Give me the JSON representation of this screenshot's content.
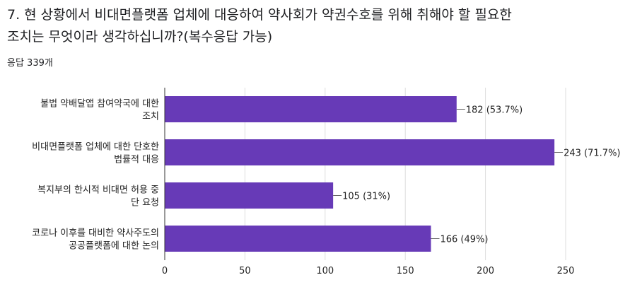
{
  "question": {
    "title_lines": [
      "7. 현 상황에서 비대면플랫폼 업체에 대응하여 약사회가 약권수호를 위해 취해야 할 필요한",
      "조치는 무엇이라 생각하십니까?(복수응답 가능)"
    ],
    "response_count": "응답 339개"
  },
  "colors": {
    "bar": "#673ab7",
    "axis": "#333333",
    "grid": "#dddddd",
    "text": "#222222"
  },
  "chart_data": {
    "type": "bar",
    "orientation": "horizontal",
    "categories": [
      [
        "불법 약배달앱 참여약국에 대한",
        "조치"
      ],
      [
        "비대면플랫폼 업체에 대한 단호한",
        "법률적 대응"
      ],
      [
        "복지부의 한시적 비대면 허용 중",
        "단 요청"
      ],
      [
        "코로나 이후를 대비한 약사주도의",
        "공공플랫폼에 대한 논의"
      ]
    ],
    "values": [
      182,
      243,
      105,
      166
    ],
    "data_labels": [
      "182 (53.7%)",
      "243 (71.7%)",
      "105 (31%)",
      "166 (49%)"
    ],
    "xlim": [
      0,
      250
    ],
    "xticks": [
      "0",
      "50",
      "100",
      "150",
      "200",
      "250"
    ],
    "grid": true
  }
}
